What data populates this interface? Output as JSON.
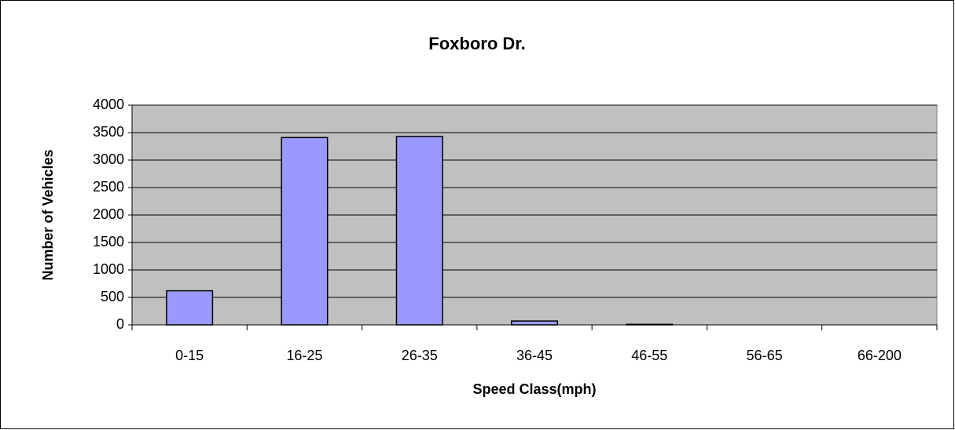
{
  "chart_data": {
    "type": "bar",
    "title": "Foxboro Dr.",
    "x_label": "Speed Class(mph)",
    "y_label": "Number of Vehicles",
    "categories": [
      "0-15",
      "16-25",
      "26-35",
      "36-45",
      "46-55",
      "56-65",
      "66-200"
    ],
    "values": [
      620,
      3410,
      3430,
      70,
      10,
      0,
      0
    ],
    "color": "#9999ff",
    "ylim": [
      0,
      4000
    ],
    "yticks": [
      0,
      500,
      1000,
      1500,
      2000,
      2500,
      3000,
      3500,
      4000
    ],
    "grid": true
  }
}
